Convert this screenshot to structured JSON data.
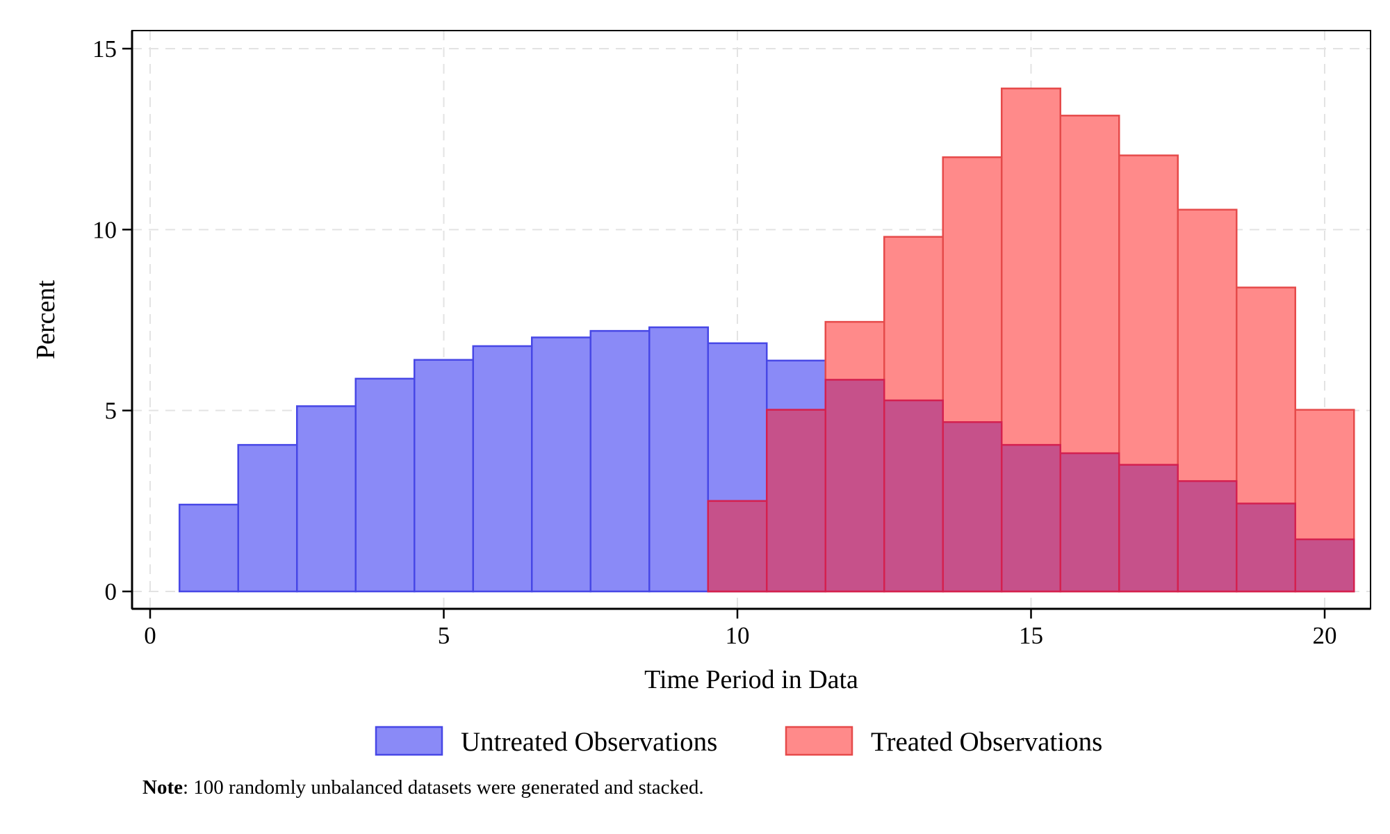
{
  "chart_data": {
    "type": "bar",
    "subtype": "overlaid-histogram",
    "title": "",
    "xlabel": "Time Period in Data",
    "ylabel": "Percent",
    "xlim": [
      0,
      20
    ],
    "ylim": [
      0,
      15
    ],
    "x_ticks": [
      0,
      5,
      10,
      15,
      20
    ],
    "y_ticks": [
      0,
      5,
      10,
      15
    ],
    "grid": true,
    "legend_position": "bottom",
    "bin_width": 1,
    "series": [
      {
        "name": "Untreated Observations",
        "color": "#8a8af7",
        "edge_color": "#4747e6",
        "x": [
          1,
          2,
          3,
          4,
          5,
          6,
          7,
          8,
          9,
          10,
          11,
          12,
          13,
          14,
          15,
          16,
          17,
          18,
          19,
          20
        ],
        "values": [
          2.4,
          4.05,
          5.12,
          5.88,
          6.4,
          6.78,
          7.02,
          7.2,
          7.3,
          6.86,
          6.38,
          5.85,
          5.28,
          4.68,
          4.05,
          3.82,
          3.5,
          3.05,
          2.43,
          1.44
        ]
      },
      {
        "name": "Treated Observations",
        "color": "#ff8a8a",
        "edge_color": "#e64a4a",
        "x": [
          10,
          11,
          12,
          13,
          14,
          15,
          16,
          17,
          18,
          19,
          20
        ],
        "values": [
          2.5,
          5.02,
          7.45,
          9.8,
          12.0,
          13.9,
          13.15,
          12.05,
          10.55,
          8.4,
          5.02
        ]
      }
    ],
    "overlap_color": "#c6518a",
    "overlap_edge_color": "#d4204f"
  },
  "note": {
    "label": "Note",
    "text": ": 100 randomly unbalanced datasets were generated and stacked."
  }
}
